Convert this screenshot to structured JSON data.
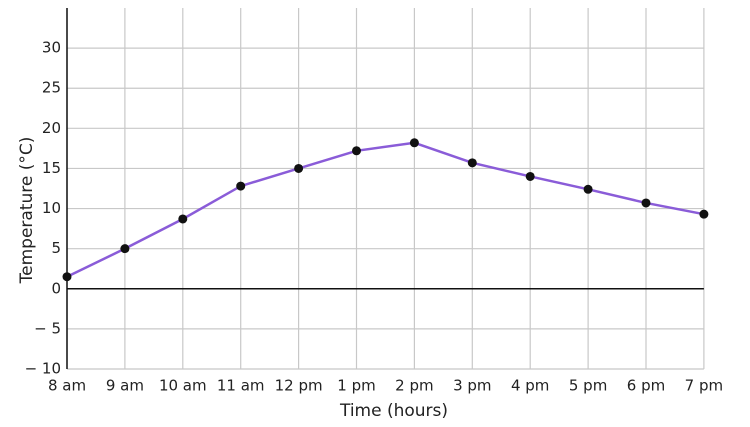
{
  "chart_data": {
    "type": "line",
    "x_label": "Time (hours)",
    "y_label": "Temperature (°C)",
    "categories": [
      "8 am",
      "9 am",
      "10 am",
      "11 am",
      "12 pm",
      "1 pm",
      "2 pm",
      "3 pm",
      "4 pm",
      "5 pm",
      "6 pm",
      "7 pm"
    ],
    "values": [
      1.5,
      5,
      8.7,
      12.8,
      15,
      17.2,
      18.2,
      15.7,
      14,
      12.4,
      10.7,
      9.3
    ],
    "color": "#8a5cd8",
    "ylim": [
      -10,
      35
    ],
    "yticks": [
      {
        "value": -10,
        "label": "− 10"
      },
      {
        "value": -5,
        "label": "− 5"
      },
      0,
      5,
      10,
      15,
      20,
      25,
      30
    ],
    "grid": true
  }
}
